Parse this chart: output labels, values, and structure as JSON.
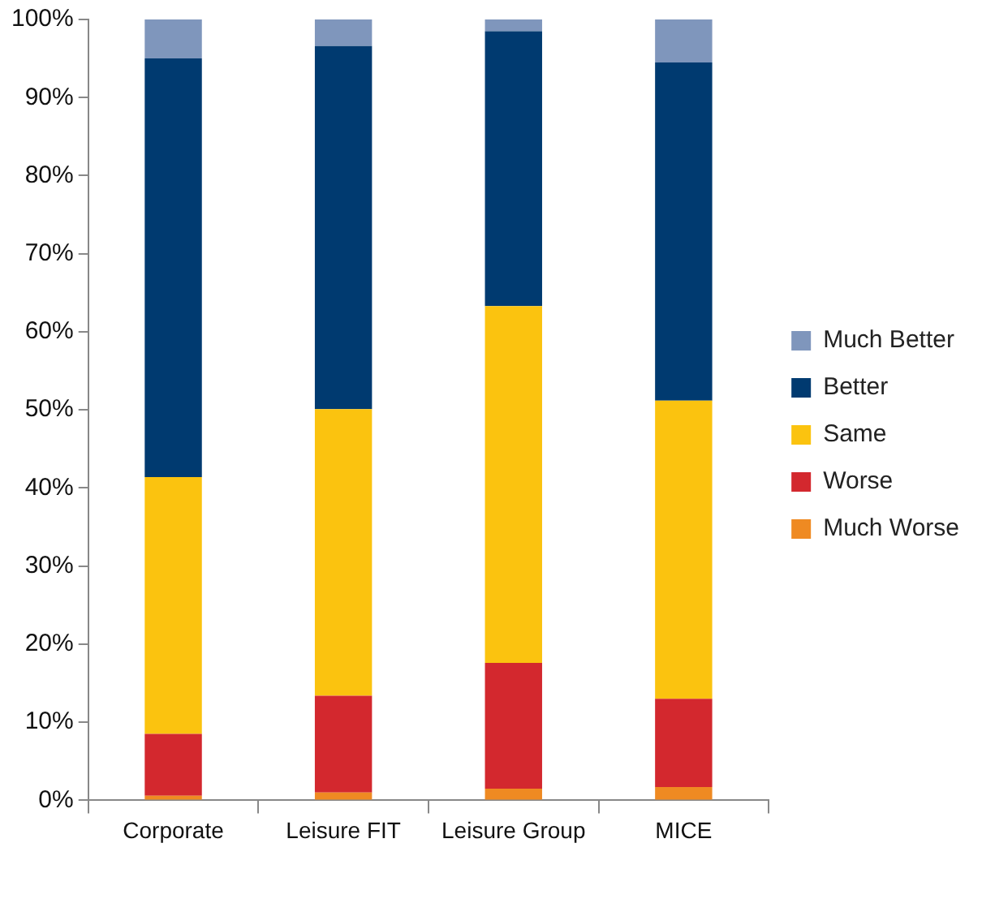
{
  "chart_data": {
    "type": "bar",
    "stacked": true,
    "categories": [
      "Corporate",
      "Leisure FIT",
      "Leisure Group",
      "MICE"
    ],
    "series": [
      {
        "name": "Much Worse",
        "color": "#ef8a22",
        "values": [
          0.6,
          1.0,
          1.5,
          1.7
        ]
      },
      {
        "name": "Worse",
        "color": "#d3282e",
        "values": [
          7.9,
          12.4,
          16.1,
          11.3
        ]
      },
      {
        "name": "Same",
        "color": "#fbc30f",
        "values": [
          32.9,
          36.7,
          45.7,
          38.2
        ]
      },
      {
        "name": "Better",
        "color": "#003a70",
        "values": [
          53.6,
          46.5,
          35.2,
          43.3
        ]
      },
      {
        "name": "Much Better",
        "color": "#7f96bc",
        "values": [
          5.0,
          3.4,
          1.5,
          5.5
        ]
      }
    ],
    "ylim": [
      0,
      100
    ],
    "yticks": [
      {
        "value": 0,
        "label": "0%"
      },
      {
        "value": 10,
        "label": "10%"
      },
      {
        "value": 20,
        "label": "20%"
      },
      {
        "value": 30,
        "label": "30%"
      },
      {
        "value": 40,
        "label": "40%"
      },
      {
        "value": 50,
        "label": "50%"
      },
      {
        "value": 60,
        "label": "60%"
      },
      {
        "value": 70,
        "label": "70%"
      },
      {
        "value": 80,
        "label": "80%"
      },
      {
        "value": 90,
        "label": "90%"
      },
      {
        "value": 100,
        "label": "100%"
      }
    ],
    "grid": false,
    "legend": "right"
  }
}
